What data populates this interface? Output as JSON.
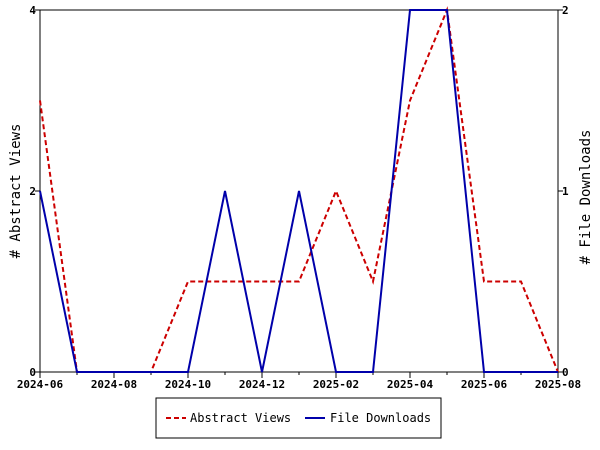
{
  "chart_data": {
    "type": "line",
    "x": [
      "2024-06",
      "2024-07",
      "2024-08",
      "2024-09",
      "2024-10",
      "2024-11",
      "2024-12",
      "2025-01",
      "2025-02",
      "2025-03",
      "2025-04",
      "2025-05",
      "2025-06",
      "2025-07",
      "2025-08"
    ],
    "x_tick_labels": [
      "2024-06",
      "2024-08",
      "2024-10",
      "2024-12",
      "2025-02",
      "2025-04",
      "2025-06",
      "2025-08"
    ],
    "series": [
      {
        "name": "Abstract Views",
        "axis": "left",
        "color": "#cc0000",
        "dash": "dashed",
        "values": [
          3,
          0,
          0,
          0,
          1,
          1,
          1,
          1,
          2,
          1,
          3,
          4,
          1,
          1,
          0
        ]
      },
      {
        "name": "File Downloads",
        "axis": "right",
        "color": "#0000aa",
        "dash": "solid",
        "values": [
          1,
          0,
          0,
          0,
          0,
          1,
          0,
          1,
          0,
          0,
          2,
          2,
          0,
          0,
          0
        ]
      }
    ],
    "ylabel_left": "# Abstract Views",
    "ylabel_right": "# File Downloads",
    "ylim_left": [
      0,
      4
    ],
    "ylim_right": [
      0,
      2
    ],
    "yticks_left": [
      "0",
      "2",
      "4"
    ],
    "yticks_right": [
      "0",
      "1",
      "2"
    ],
    "grid": false,
    "legend_position": "bottom"
  }
}
